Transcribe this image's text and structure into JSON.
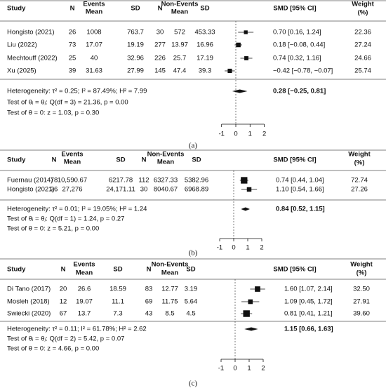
{
  "panels": [
    {
      "columns": [
        "Study",
        "N",
        "Mean",
        "SD",
        "N",
        "Mean",
        "SD",
        "SMD [95% CI]"
      ],
      "group_headers": [
        "Events",
        "Non-Events"
      ],
      "weight_header": [
        "Weight",
        "(%)"
      ],
      "rows": [
        {
          "cells": [
            "Hongisto (2021)",
            "26",
            "1008",
            "763.7",
            "30",
            "572",
            "453.33"
          ],
          "smd": 0.7,
          "ci": [
            0.16,
            1.24
          ],
          "smd_label": "0.70 [0.16, 1.24]",
          "weight": "22.36"
        },
        {
          "cells": [
            "Liu (2022)",
            "73",
            "17.07",
            "19.19",
            "277",
            "13.97",
            "16.96"
          ],
          "smd": 0.18,
          "ci": [
            -0.08,
            0.44
          ],
          "smd_label": "0.18 [−0.08, 0.44]",
          "weight": "27.24"
        },
        {
          "cells": [
            "Mechtouff (2022)",
            "25",
            "40",
            "32.96",
            "226",
            "25.7",
            "17.19"
          ],
          "smd": 0.74,
          "ci": [
            0.32,
            1.16
          ],
          "smd_label": "0.74 [0.32, 1.16]",
          "weight": "24.66"
        },
        {
          "cells": [
            "Xu (2025)",
            "39",
            "31.63",
            "27.99",
            "145",
            "47.4",
            "39.3"
          ],
          "smd": -0.42,
          "ci": [
            -0.78,
            -0.07
          ],
          "smd_label": "−0.42 [−0.78, −0.07]",
          "weight": "25.74"
        }
      ],
      "summary": {
        "lines": [
          "Heterogeneity: τ² = 0.25; I² = 87.49%; H² = 7.99",
          "Test of θᵢ = θⱼ: Q(df = 3) = 21.36, p = 0.00",
          "Test of θ = 0: z = 1.03, p = 0.30"
        ],
        "smd": 0.28,
        "ci": [
          -0.25,
          0.81
        ],
        "smd_label": "0.28 [−0.25, 0.81]"
      },
      "xlim": [
        -1,
        2
      ],
      "xticks": [
        -1,
        0,
        1,
        2
      ],
      "caption": "(a)"
    },
    {
      "columns": [
        "Study",
        "N",
        "Mean",
        "SD",
        "N",
        "Mean",
        "SD",
        "SMD [95% CI]"
      ],
      "group_headers": [
        "Events",
        "Non-Events"
      ],
      "weight_header": [
        "Weight",
        "(%)"
      ],
      "rows": [
        {
          "cells": [
            "Fuernau (2014)",
            "78",
            "10,590.67",
            "6217.78",
            "112",
            "6327.33",
            "5382.96"
          ],
          "smd": 0.74,
          "ci": [
            0.44,
            1.04
          ],
          "smd_label": "0.74 [0.44, 1.04]",
          "weight": "72.74"
        },
        {
          "cells": [
            "Hongisto (2021)",
            "26",
            "27,276",
            "24,171.11",
            "30",
            "8040.67",
            "6968.89"
          ],
          "smd": 1.1,
          "ci": [
            0.54,
            1.66
          ],
          "smd_label": "1.10 [0.54, 1.66]",
          "weight": "27.26"
        }
      ],
      "summary": {
        "lines": [
          "Heterogeneity: τ² = 0.01; I² = 19.05%; H² = 1.24",
          "Test of θᵢ = θⱼ: Q(df = 1) = 1.24, p = 0.27",
          "Test of θ = 0: z = 5.21, p = 0.00"
        ],
        "smd": 0.84,
        "ci": [
          0.52,
          1.15
        ],
        "smd_label": "0.84 [0.52, 1.15]"
      },
      "xlim": [
        -1,
        2
      ],
      "xticks": [
        -1,
        0,
        1,
        2
      ],
      "caption": "(b)"
    },
    {
      "columns": [
        "Study",
        "N",
        "Mean",
        "SD",
        "N",
        "Mean",
        "SD",
        "SMD [95% CI]"
      ],
      "group_headers": [
        "Events",
        "Non-Events"
      ],
      "weight_header": [
        "Weight",
        "(%)"
      ],
      "rows": [
        {
          "cells": [
            "Di Tano (2017)",
            "20",
            "26.6",
            "18.59",
            "83",
            "12.77",
            "3.19"
          ],
          "smd": 1.6,
          "ci": [
            1.07,
            2.14
          ],
          "smd_label": "1.60 [1.07, 2.14]",
          "weight": "32.50"
        },
        {
          "cells": [
            "Mosleh (2018)",
            "12",
            "19.07",
            "11.1",
            "69",
            "11.75",
            "5.64"
          ],
          "smd": 1.09,
          "ci": [
            0.45,
            1.72
          ],
          "smd_label": "1.09 [0.45, 1.72]",
          "weight": "27.91"
        },
        {
          "cells": [
            "Swiecki (2020)",
            "67",
            "13.7",
            "7.3",
            "43",
            "8.5",
            "4.5"
          ],
          "smd": 0.81,
          "ci": [
            0.41,
            1.21
          ],
          "smd_label": "0.81 [0.41, 1.21]",
          "weight": "39.60"
        }
      ],
      "summary": {
        "lines": [
          "Heterogeneity: τ² = 0.11; I² = 61.78%; H² = 2.62",
          "Test of θᵢ = θⱼ: Q(df = 2) = 5.42, p = 0.07",
          "Test of θ = 0: z = 4.66, p = 0.00"
        ],
        "smd": 1.15,
        "ci": [
          0.66,
          1.63
        ],
        "smd_label": "1.15 [0.66, 1.63]"
      },
      "xlim": [
        -1,
        2
      ],
      "xticks": [
        -1,
        0,
        1,
        2
      ],
      "caption": "(c)"
    }
  ]
}
